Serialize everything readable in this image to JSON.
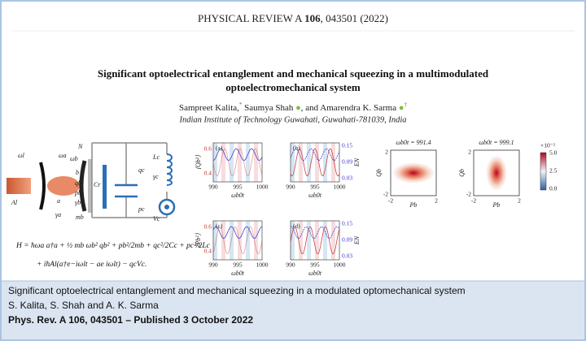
{
  "header": {
    "journal": "PHYSICAL REVIEW A",
    "volume": "106",
    "rest": ", 043501 (2022)"
  },
  "title": [
    "Significant optoelectrical entanglement and mechanical squeezing in a multimodulated",
    "optoelectromechanical system"
  ],
  "authors": [
    "Sampreet Kalita,",
    "*",
    "Saumya Shah",
    ", and Amarendra K. Sarma",
    "†"
  ],
  "affiliation": "Indian Institute of Technology Guwahati, Guwahati-781039, India",
  "schematic": {
    "labels": [
      "ωl",
      "Al",
      "ωa",
      "a",
      "γa",
      "ωb",
      "N",
      "b",
      "qb",
      "pb",
      "γb",
      "mb",
      "Cr",
      "qc",
      "pc",
      "Lc",
      "γc",
      "Vc"
    ]
  },
  "equation": [
    "H = ħωa a†a + ½ mb ωb² qb² + pb²/2mb + qc²/2Cc + pc²/2Lc",
    "+ iħAl(a†e−iωlt − ae iωlt) − qcVc."
  ],
  "plots": {
    "panels": [
      "(a)",
      "(b)",
      "(c)",
      "(d)"
    ],
    "xticks": [
      "990",
      "995",
      "1000"
    ],
    "xlabel": "ωb0t",
    "ylabel_left_top": "⟨Qb²⟩",
    "ylabel_left_bottom": "⟨Pb²⟩",
    "ylabel_right": "EN",
    "yticks_left": [
      "0.6",
      "0.4"
    ],
    "yticks_right": [
      "0.15",
      "0.09",
      "0.03"
    ]
  },
  "density": {
    "titles": [
      "ωb0t = 991.4",
      "ωb0t = 999.1"
    ],
    "ylabel": "Qb",
    "xlabel": "Pb",
    "ticks": [
      "2",
      "-2"
    ],
    "colorbar_scale": "×10⁻²",
    "colorbar_ticks": [
      "5.0",
      "2.5",
      "0.0"
    ]
  },
  "caption": {
    "title": "Significant optoelectrical entanglement and mechanical squeezing in a modulated optomechanical system",
    "authors": "S. Kalita, S. Shah and A. K. Sarma",
    "citation": "Phys. Rev. A 106, 043501  – Published 3 October 2022"
  }
}
